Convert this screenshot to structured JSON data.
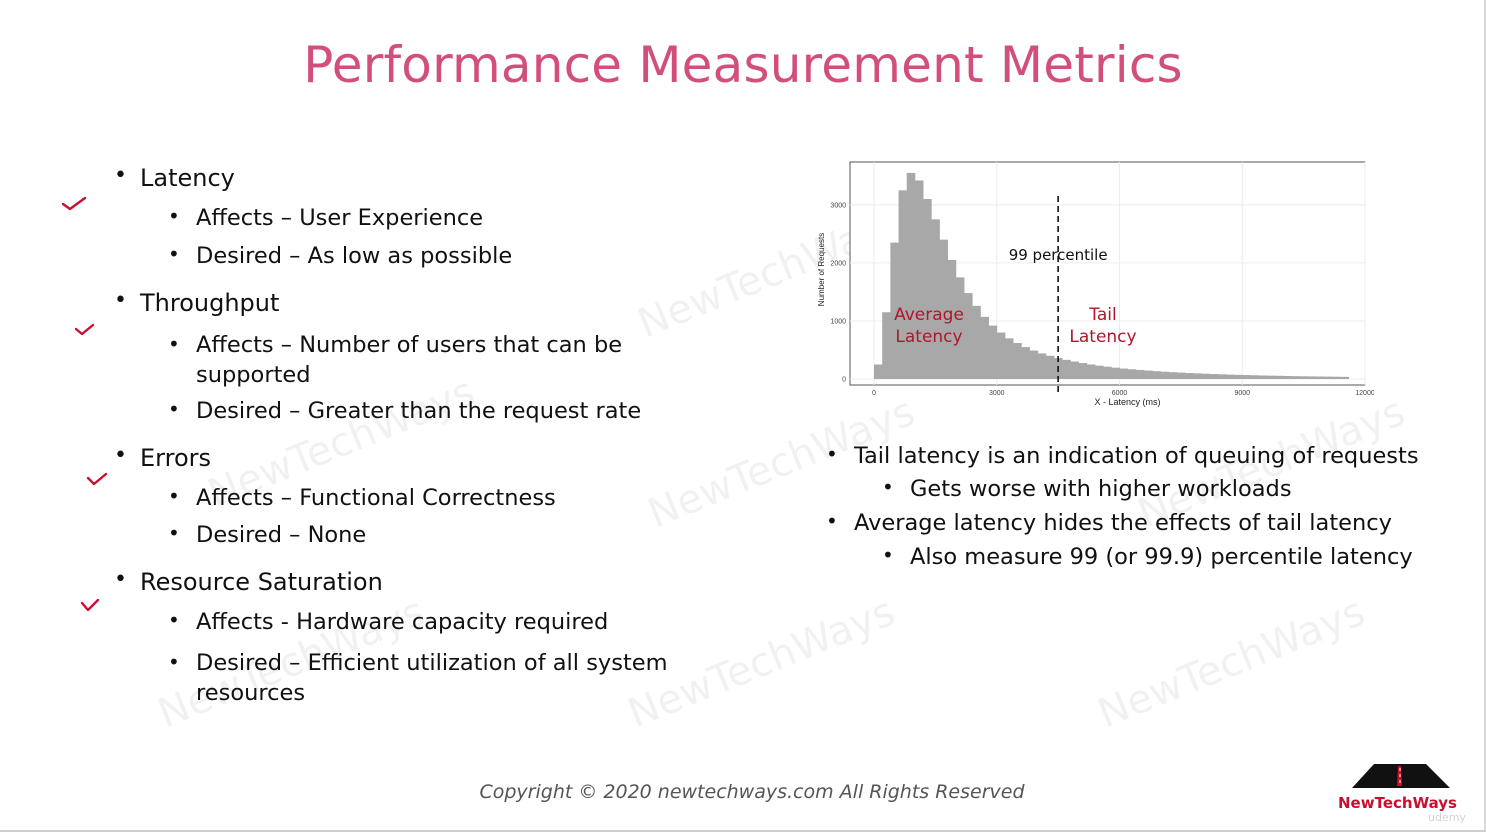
{
  "slide": {
    "title": "Performance Measurement Metrics",
    "watermark": "NewTechWays",
    "left_bullets": [
      {
        "label": "Latency",
        "sub": [
          "Affects – User Experience",
          "Desired – As low as possible"
        ]
      },
      {
        "label": "Throughput",
        "sub": [
          "Affects – Number of users that can be supported",
          "Desired – Greater than the request rate"
        ]
      },
      {
        "label": "Errors",
        "sub": [
          "Affects – Functional Correctness",
          "Desired – None"
        ]
      },
      {
        "label": "Resource Saturation",
        "sub": [
          "Affects - Hardware capacity required",
          "Desired – Efficient utilization of all system resources"
        ]
      }
    ],
    "right_bullets": [
      {
        "label": "Tail latency is an indication of queuing of requests",
        "sub": [
          "Gets worse with higher workloads"
        ]
      },
      {
        "label": "Average latency hides the effects of tail latency",
        "sub": [
          "Also measure 99 (or 99.9) percentile latency"
        ]
      }
    ],
    "copyright": "Copyright © 2020 newtechways.com All Rights Reserved",
    "logo_text": "NewTechWays",
    "udemy_text": "udemy",
    "accent_color": "#d24f7c",
    "check_color": "#c8102e"
  },
  "chart_data": {
    "type": "bar",
    "xlabel": "X - Latency (ms)",
    "ylabel": "Number of Requests",
    "xlim": [
      0,
      12000
    ],
    "ylim": [
      0,
      3600
    ],
    "x_ticks": [
      "0",
      "3000",
      "6000",
      "9000",
      "12000"
    ],
    "y_ticks": [
      "0",
      "1000",
      "2000",
      "3000"
    ],
    "grid": true,
    "annotations": {
      "percentile_label": "99 percentile",
      "percentile_x": 4500,
      "average_label": [
        "Average",
        "Latency"
      ],
      "tail_label": [
        "Tail",
        "Latency"
      ]
    },
    "x": [
      100,
      300,
      500,
      700,
      900,
      1100,
      1300,
      1500,
      1700,
      1900,
      2100,
      2300,
      2500,
      2700,
      2900,
      3100,
      3300,
      3500,
      3700,
      3900,
      4100,
      4300,
      4500,
      4700,
      4900,
      5100,
      5300,
      5500,
      5700,
      5900,
      6100,
      6300,
      6500,
      6700,
      6900,
      7100,
      7300,
      7500,
      7700,
      7900,
      8100,
      8300,
      8500,
      8700,
      8900,
      9100,
      9300,
      9500,
      9700,
      9900,
      10100,
      10300,
      10500,
      10700,
      10900,
      11100,
      11300,
      11500
    ],
    "values": [
      250,
      1150,
      2350,
      3250,
      3550,
      3420,
      3100,
      2750,
      2400,
      2050,
      1750,
      1480,
      1260,
      1070,
      920,
      800,
      700,
      620,
      550,
      490,
      440,
      400,
      360,
      330,
      300,
      275,
      250,
      230,
      212,
      195,
      180,
      168,
      156,
      145,
      135,
      126,
      118,
      110,
      103,
      97,
      91,
      86,
      81,
      76,
      72,
      68,
      64,
      61,
      58,
      55,
      52,
      49,
      47,
      45,
      43,
      41,
      39,
      37
    ]
  }
}
